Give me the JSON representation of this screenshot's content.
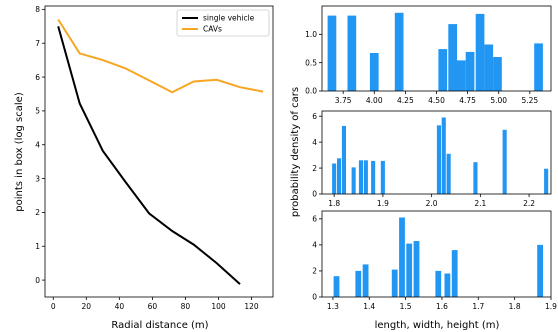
{
  "chart_data": [
    {
      "type": "line",
      "xlabel": "Radial distance (m)",
      "ylabel": "points in box (log scale)",
      "xlim": [
        -5,
        133
      ],
      "ylim": [
        -0.5,
        8.1
      ],
      "xticks": [
        0,
        20,
        40,
        60,
        80,
        100,
        120
      ],
      "yticks": [
        0,
        1,
        2,
        3,
        4,
        5,
        6,
        7,
        8
      ],
      "legend": "top-right",
      "series": [
        {
          "name": "single vehicle",
          "color": "#000000",
          "x": [
            3,
            16,
            30,
            44,
            58,
            72,
            85,
            99,
            113
          ],
          "y": [
            7.5,
            5.22,
            3.82,
            2.88,
            1.97,
            1.45,
            1.05,
            0.5,
            -0.12
          ]
        },
        {
          "name": "CAVs",
          "color": "#f5a623",
          "x": [
            3,
            16,
            30,
            44,
            58,
            72,
            85,
            99,
            113,
            127
          ],
          "y": [
            7.7,
            6.7,
            6.5,
            6.25,
            5.9,
            5.55,
            5.87,
            5.92,
            5.7,
            5.57
          ]
        }
      ]
    },
    {
      "type": "bar",
      "color": "#2196f3",
      "xlim": [
        3.58,
        5.42
      ],
      "ylim": [
        0,
        1.5
      ],
      "xticks": [
        3.75,
        4.0,
        4.25,
        4.5,
        4.75,
        5.0,
        5.25
      ],
      "xticklabels": [
        "3.75",
        "4.00",
        "4.25",
        "4.50",
        "4.75",
        "5.00",
        "5.25"
      ],
      "yticks": [
        0.0,
        0.5,
        1.0
      ],
      "yticklabels": [
        "0.0",
        "0.5",
        "1.0"
      ],
      "bar_width": 0.07,
      "x": [
        3.66,
        3.82,
        4.0,
        4.2,
        4.55,
        4.63,
        4.7,
        4.77,
        4.85,
        4.92,
        4.99,
        5.32
      ],
      "values": [
        1.33,
        1.33,
        0.67,
        1.38,
        0.74,
        1.18,
        0.54,
        0.69,
        1.36,
        0.82,
        0.6,
        0.84
      ]
    },
    {
      "type": "bar",
      "color": "#2196f3",
      "xlim": [
        1.775,
        2.245
      ],
      "ylim": [
        0,
        6.4
      ],
      "xticks": [
        1.8,
        1.9,
        2.0,
        2.1,
        2.2
      ],
      "xticklabels": [
        "1.8",
        "1.9",
        "2.0",
        "2.1",
        "2.2"
      ],
      "yticks": [
        0,
        2,
        4,
        6
      ],
      "yticklabels": [
        "0",
        "2",
        "4",
        "6"
      ],
      "bar_width": 0.0085,
      "x": [
        1.8,
        1.81,
        1.82,
        1.84,
        1.855,
        1.865,
        1.88,
        1.9,
        2.015,
        2.025,
        2.035,
        2.09,
        2.15,
        2.235
      ],
      "values": [
        2.35,
        2.75,
        5.25,
        2.05,
        2.6,
        2.6,
        2.55,
        2.55,
        5.3,
        5.9,
        3.1,
        2.45,
        4.95,
        1.95
      ]
    },
    {
      "type": "bar",
      "color": "#2196f3",
      "xlabel": "length, width, height (m)",
      "xlim": [
        1.27,
        1.9
      ],
      "ylim": [
        0,
        6.6
      ],
      "xticks": [
        1.3,
        1.4,
        1.5,
        1.6,
        1.7,
        1.8,
        1.9
      ],
      "xticklabels": [
        "1.3",
        "1.4",
        "1.5",
        "1.6",
        "1.7",
        "1.8",
        "1.9"
      ],
      "yticks": [
        0,
        2,
        4,
        6
      ],
      "yticklabels": [
        "0",
        "2",
        "4",
        "6"
      ],
      "bar_width": 0.016,
      "x": [
        1.31,
        1.37,
        1.39,
        1.47,
        1.49,
        1.51,
        1.53,
        1.59,
        1.615,
        1.635,
        1.87
      ],
      "values": [
        1.6,
        2.0,
        2.5,
        2.1,
        6.1,
        4.1,
        4.3,
        2.0,
        1.8,
        3.6,
        4.0
      ]
    }
  ],
  "shared_ylabel": "probability density of cars"
}
